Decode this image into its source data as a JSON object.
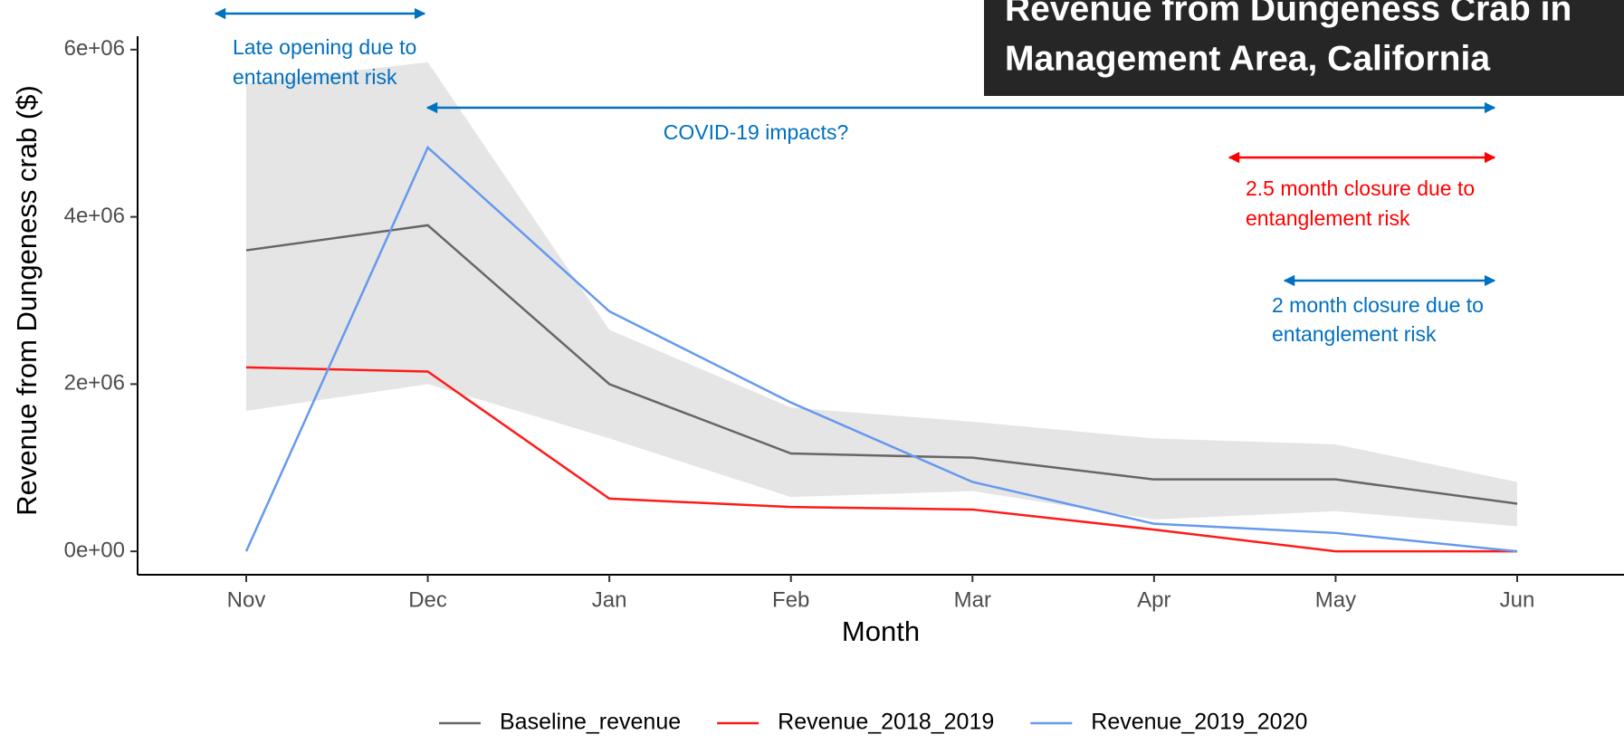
{
  "chart_data": {
    "type": "line",
    "title": [
      "Revenue from Dungeness Crab in",
      "Management Area, California"
    ],
    "x_label": "Month",
    "y_label": "Revenue from Dungeness crab ($)",
    "categories": [
      "Nov",
      "Dec",
      "Jan",
      "Feb",
      "Mar",
      "Apr",
      "May",
      "Jun"
    ],
    "ylim": [
      -280000,
      6150000
    ],
    "yticks": [
      {
        "value": 0,
        "label": "0e+00"
      },
      {
        "value": 2000000,
        "label": "2e+06"
      },
      {
        "value": 4000000,
        "label": "4e+06"
      },
      {
        "value": 6000000,
        "label": "6e+06"
      }
    ],
    "band_color": "#e5e5e5",
    "series": [
      {
        "name": "Baseline_revenue",
        "color": "#666666",
        "values": [
          3600000,
          3900000,
          2000000,
          1170000,
          1120000,
          860000,
          860000,
          570000
        ],
        "lower": [
          1680000,
          2000000,
          1350000,
          650000,
          720000,
          380000,
          480000,
          300000
        ],
        "upper": [
          5600000,
          5850000,
          2650000,
          1720000,
          1550000,
          1350000,
          1280000,
          830000
        ]
      },
      {
        "name": "Revenue_2018_2019",
        "color": "#ff1a1a",
        "values": [
          2200000,
          2150000,
          630000,
          530000,
          500000,
          260000,
          0,
          0
        ]
      },
      {
        "name": "Revenue_2019_2020",
        "color": "#6699ee",
        "values": [
          0,
          4830000,
          2870000,
          1780000,
          830000,
          330000,
          220000,
          0
        ]
      }
    ],
    "legend_position": "bottom",
    "annotations": [
      {
        "lines": [
          "Late opening due to",
          "entanglement risk"
        ],
        "color": "#0070c0"
      },
      {
        "lines": [
          "COVID-19 impacts?"
        ],
        "color": "#0070c0"
      },
      {
        "lines": [
          "2.5  month closure due to",
          "entanglement risk"
        ],
        "color": "#ff0000"
      },
      {
        "lines": [
          "2 month closure due to",
          "entanglement risk"
        ],
        "color": "#0070c0"
      }
    ]
  }
}
